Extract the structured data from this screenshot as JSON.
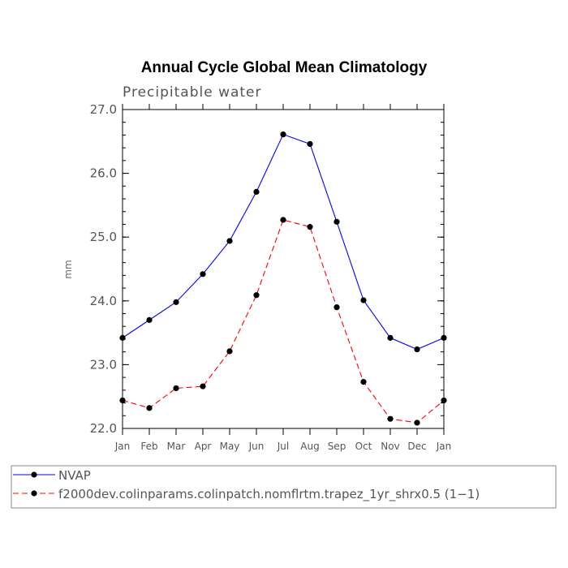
{
  "chart_data": {
    "type": "line",
    "title": "Annual Cycle Global Mean Climatology",
    "subtitle": "Precipitable water",
    "xlabel": "",
    "ylabel": "mm",
    "categories": [
      "Jan",
      "Feb",
      "Mar",
      "Apr",
      "May",
      "Jun",
      "Jul",
      "Aug",
      "Sep",
      "Oct",
      "Nov",
      "Dec",
      "Jan"
    ],
    "ylim": [
      22.0,
      27.0
    ],
    "yticks": [
      "22.0",
      "23.0",
      "24.0",
      "25.0",
      "26.0",
      "27.0"
    ],
    "ytick_values": [
      22.0,
      23.0,
      24.0,
      25.0,
      26.0,
      27.0
    ],
    "series": [
      {
        "name": "NVAP",
        "color": "#0000ff",
        "style": "solid",
        "values": [
          23.42,
          23.7,
          23.98,
          24.42,
          24.94,
          25.71,
          26.61,
          26.46,
          25.24,
          24.01,
          23.42,
          23.24,
          23.42
        ]
      },
      {
        "name": "f2000dev.colinparams.colinpatch.nomflrtm.trapez_1yr_shrx0.5 (1−1)",
        "color": "#ff0000",
        "style": "dashed",
        "values": [
          22.44,
          22.32,
          22.63,
          22.66,
          23.21,
          24.09,
          25.27,
          25.16,
          23.9,
          22.73,
          22.15,
          22.09,
          22.44
        ]
      }
    ],
    "legend_position": "bottom"
  }
}
